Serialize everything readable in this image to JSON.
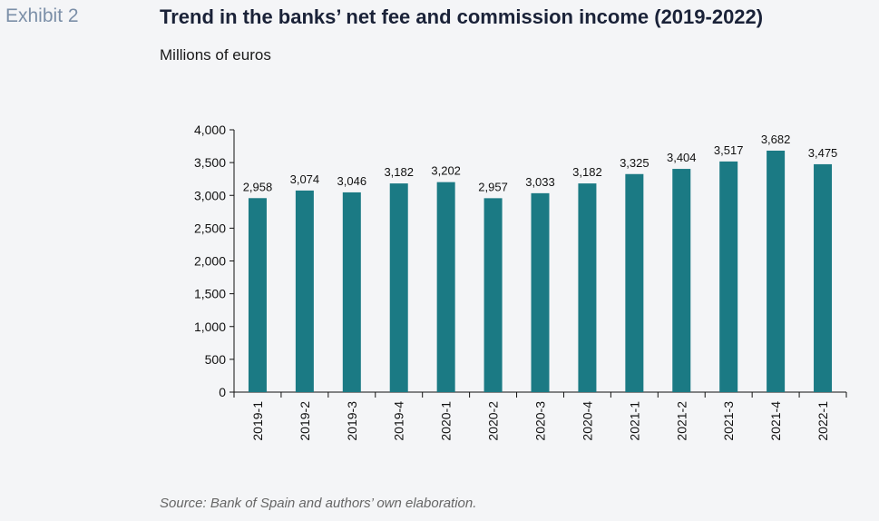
{
  "exhibit": "Exhibit 2",
  "title": "Trend in the banks’ net fee and commission income (2019-2022)",
  "subtitle": "Millions of euros",
  "source": "Source: Bank of Spain and authors’ own elaboration.",
  "colors": {
    "bar": "#1b7a84",
    "axis": "#111111"
  },
  "chart_data": {
    "type": "bar",
    "categories": [
      "2019-1",
      "2019-2",
      "2019-3",
      "2019-4",
      "2020-1",
      "2020-2",
      "2020-3",
      "2020-4",
      "2021-1",
      "2021-2",
      "2021-3",
      "2021-4",
      "2022-1"
    ],
    "values": [
      2958,
      3074,
      3046,
      3182,
      3202,
      2957,
      3033,
      3182,
      3325,
      3404,
      3517,
      3682,
      3475
    ],
    "value_labels": [
      "2,958",
      "3,074",
      "3,046",
      "3,182",
      "3,202",
      "2,957",
      "3,033",
      "3,182",
      "3,325",
      "3,404",
      "3,517",
      "3,682",
      "3,475"
    ],
    "ylim": [
      0,
      4000
    ],
    "yticks": [
      0,
      500,
      1000,
      1500,
      2000,
      2500,
      3000,
      3500,
      4000
    ],
    "ytick_labels": [
      "0",
      "500",
      "1,000",
      "1,500",
      "2,000",
      "2,500",
      "3,000",
      "3,500",
      "4,000"
    ],
    "xlabel": "",
    "ylabel": "",
    "grid": false,
    "legend": "none"
  }
}
